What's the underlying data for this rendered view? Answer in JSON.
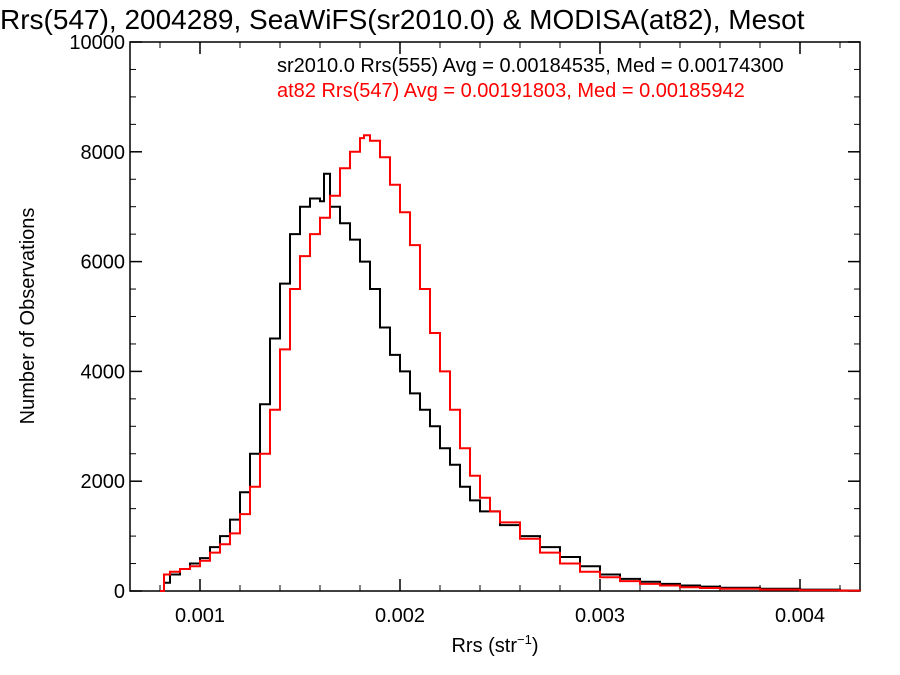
{
  "chart_data": {
    "type": "line",
    "title": "Rrs(547), 2004289, SeaWiFS(sr2010.0) & MODISA(at82), Mesot",
    "xlabel_main": "Rrs (str",
    "xlabel_sup": "−1",
    "xlabel_close": ")",
    "ylabel": "Number of Observations",
    "xlim": [
      0.00065,
      0.0043
    ],
    "ylim": [
      0,
      10000
    ],
    "x_ticks": [
      {
        "value": 0.001,
        "label": "0.001"
      },
      {
        "value": 0.002,
        "label": "0.002"
      },
      {
        "value": 0.003,
        "label": "0.003"
      },
      {
        "value": 0.004,
        "label": "0.004"
      }
    ],
    "y_ticks": [
      {
        "value": 0,
        "label": "0"
      },
      {
        "value": 2000,
        "label": "2000"
      },
      {
        "value": 4000,
        "label": "4000"
      },
      {
        "value": 6000,
        "label": "6000"
      },
      {
        "value": 8000,
        "label": "8000"
      },
      {
        "value": 10000,
        "label": "10000"
      }
    ],
    "legend": {
      "placement": "top-right",
      "entries": [
        {
          "text": "sr2010.0 Rrs(555) Avg = 0.00184535, Med = 0.00174300",
          "color": "#000000"
        },
        {
          "text": "at82 Rrs(547) Avg = 0.00191803, Med = 0.00185942",
          "color": "#ff0000"
        }
      ]
    },
    "series": [
      {
        "color": "#000000",
        "x": [
          0.0008,
          0.00082,
          0.00085,
          0.0009,
          0.00095,
          0.001,
          0.00105,
          0.0011,
          0.00115,
          0.0012,
          0.00125,
          0.0013,
          0.00135,
          0.0014,
          0.00145,
          0.0015,
          0.00155,
          0.0016,
          0.00162,
          0.00165,
          0.0017,
          0.00175,
          0.0018,
          0.00185,
          0.0019,
          0.00195,
          0.002,
          0.00205,
          0.0021,
          0.00215,
          0.0022,
          0.00225,
          0.0023,
          0.00235,
          0.0024,
          0.0025,
          0.0026,
          0.0027,
          0.0028,
          0.0029,
          0.003,
          0.0031,
          0.0032,
          0.0033,
          0.0034,
          0.0035,
          0.0036,
          0.0038,
          0.004,
          0.0042,
          0.0043
        ],
        "y": [
          0,
          150,
          300,
          400,
          500,
          600,
          800,
          1000,
          1300,
          1800,
          2500,
          3400,
          4600,
          5600,
          6500,
          7000,
          7150,
          7100,
          7600,
          7000,
          6700,
          6400,
          6000,
          5500,
          4800,
          4300,
          4000,
          3600,
          3300,
          3000,
          2600,
          2300,
          1900,
          1650,
          1450,
          1200,
          1000,
          800,
          620,
          450,
          300,
          220,
          170,
          130,
          100,
          80,
          60,
          40,
          25,
          10,
          5
        ]
      },
      {
        "color": "#ff0000",
        "x": [
          0.0008,
          0.00082,
          0.00085,
          0.0009,
          0.00095,
          0.001,
          0.00105,
          0.0011,
          0.00115,
          0.0012,
          0.00125,
          0.0013,
          0.00135,
          0.0014,
          0.00145,
          0.0015,
          0.00155,
          0.0016,
          0.00165,
          0.0017,
          0.00175,
          0.0018,
          0.00182,
          0.00185,
          0.0019,
          0.00195,
          0.002,
          0.00205,
          0.0021,
          0.00215,
          0.0022,
          0.00225,
          0.0023,
          0.00235,
          0.0024,
          0.00245,
          0.0025,
          0.0026,
          0.0027,
          0.0028,
          0.0029,
          0.003,
          0.0031,
          0.0032,
          0.0033,
          0.0034,
          0.0035,
          0.0036,
          0.0038,
          0.004,
          0.0042,
          0.0043
        ],
        "y": [
          0,
          300,
          350,
          400,
          450,
          550,
          700,
          850,
          1050,
          1400,
          1900,
          2500,
          3300,
          4400,
          5500,
          6100,
          6500,
          6800,
          7200,
          7700,
          8000,
          8250,
          8300,
          8200,
          7900,
          7400,
          6900,
          6300,
          5500,
          4700,
          4000,
          3300,
          2600,
          2100,
          1700,
          1450,
          1250,
          950,
          700,
          500,
          350,
          250,
          180,
          130,
          100,
          70,
          55,
          40,
          25,
          15,
          8,
          5
        ]
      }
    ]
  }
}
